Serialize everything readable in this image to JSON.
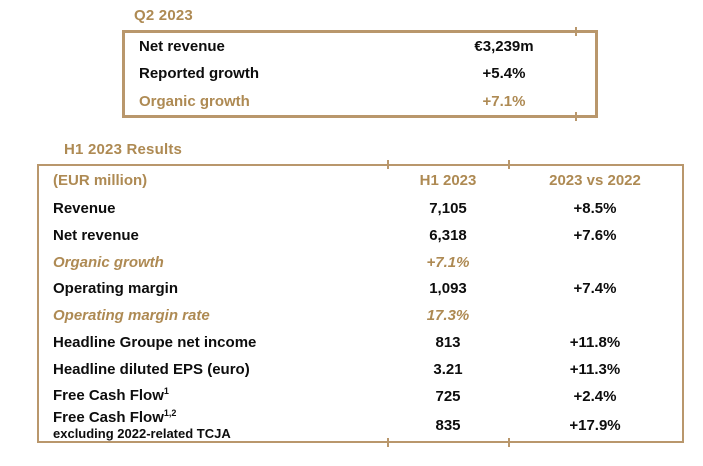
{
  "colors": {
    "accent_gold": "#AE8A53",
    "border_gold": "#B9976C",
    "text_black": "#0d0d0d",
    "background": "#FFFFFF"
  },
  "q2_section": {
    "title": "Q2 2023",
    "rows": [
      {
        "label": "Net revenue",
        "value": "€3,239m",
        "style": "black"
      },
      {
        "label": "Reported growth",
        "value": "+5.4%",
        "style": "black"
      },
      {
        "label": "Organic growth",
        "value": "+7.1%",
        "style": "gold"
      }
    ]
  },
  "h1_section": {
    "title": "H1 2023 Results",
    "table": {
      "columns": [
        "(EUR million)",
        "H1 2023",
        "2023 vs 2022"
      ],
      "rows": [
        {
          "label": "Revenue",
          "value": "7,105",
          "change": "+8.5%",
          "style": "black"
        },
        {
          "label": "Net revenue",
          "value": "6,318",
          "change": "+7.6%",
          "style": "black"
        },
        {
          "label": "Organic growth",
          "value": "+7.1%",
          "change": "",
          "style": "gold-italic"
        },
        {
          "label": "Operating margin",
          "value": "1,093",
          "change": "+7.4%",
          "style": "black"
        },
        {
          "label": "Operating margin rate",
          "value": "17.3%",
          "change": "",
          "style": "gold-italic"
        },
        {
          "label": "Headline Groupe net income",
          "value": "813",
          "change": "+11.8%",
          "style": "black"
        },
        {
          "label": "Headline diluted EPS (euro)",
          "value": "3.21",
          "change": "+11.3%",
          "style": "black"
        },
        {
          "label": "Free Cash Flow",
          "superscript": "1",
          "value": "725",
          "change": "+2.4%",
          "style": "black"
        },
        {
          "label": "Free Cash Flow",
          "superscript": "1,2",
          "sublabel": "excluding 2022-related TCJA",
          "value": "835",
          "change": "+17.9%",
          "style": "black",
          "tall": true
        }
      ]
    }
  }
}
